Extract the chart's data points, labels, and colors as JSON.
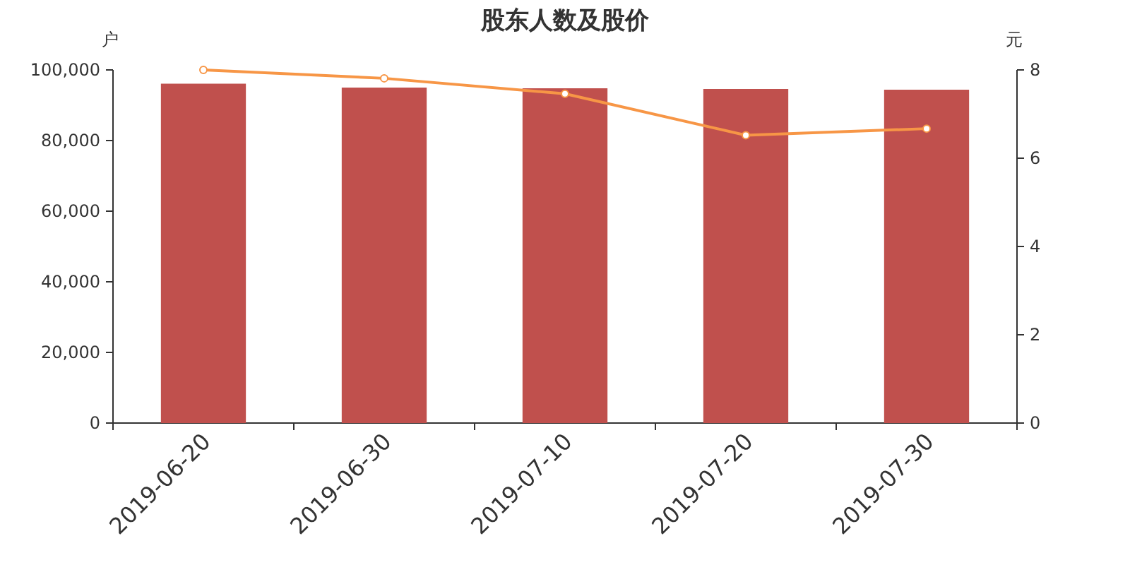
{
  "chart_data": {
    "type": "bar",
    "title": "股东人数及股价",
    "ylabel": "户",
    "y2label": "元",
    "categories": [
      "2019-06-20",
      "2019-06-30",
      "2019-07-10",
      "2019-07-20",
      "2019-07-30"
    ],
    "series": [
      {
        "color": "#c0504d",
        "values": [
          96100,
          95000,
          94800,
          94600,
          94400
        ]
      },
      {
        "type": "line",
        "axis": "y2",
        "color": "#f79646",
        "marker": "circle",
        "values": [
          8.0,
          7.81,
          7.46,
          6.52,
          6.67
        ]
      }
    ],
    "ylim": [
      0,
      100000
    ],
    "yticks": [
      0,
      {
        "value": 20000,
        "label": "20,000"
      },
      {
        "value": 40000,
        "label": "40,000"
      },
      {
        "value": 60000,
        "label": "60,000"
      },
      {
        "value": 80000,
        "label": "80,000"
      },
      {
        "value": 100000,
        "label": "100,000"
      }
    ],
    "y2lim": [
      0,
      8
    ],
    "y2ticks": [
      0,
      2,
      4,
      6,
      8
    ]
  }
}
